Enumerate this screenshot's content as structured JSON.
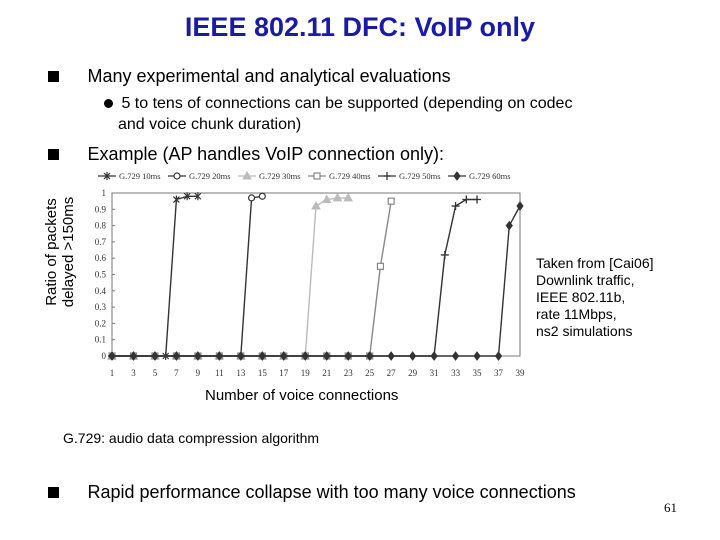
{
  "title": "IEEE 802.11 DFC: VoIP only",
  "bullets": [
    {
      "text": "Many experimental and analytical evaluations"
    },
    {
      "text": "Example (AP handles VoIP connection only):"
    },
    {
      "text": "Rapid performance collapse with too many voice connections"
    }
  ],
  "subbullet": {
    "line1": "5 to tens of connections can be supported (depending on codec",
    "line2": "and voice chunk duration)"
  },
  "note": {
    "lines": [
      "Taken from [Cai06]",
      "Downlink traffic,",
      "IEEE 802.11b,",
      "rate 11Mbps,",
      "ns2 simulations"
    ]
  },
  "caption": "G.729: audio data compression algorithm",
  "page_number": "61",
  "chart_data": {
    "type": "line",
    "title": "",
    "xlabel": "Number of voice connections",
    "ylabel_lines": [
      "Ratio of packets",
      "delayed >150ms"
    ],
    "xlim": [
      1,
      39
    ],
    "ylim": [
      0,
      1
    ],
    "x_ticks": [
      1,
      3,
      5,
      7,
      9,
      11,
      13,
      15,
      17,
      19,
      21,
      23,
      25,
      27,
      29,
      31,
      33,
      35,
      37,
      39
    ],
    "y_ticks": [
      0,
      0.1,
      0.2,
      0.3,
      0.4,
      0.5,
      0.6,
      0.7,
      0.8,
      0.9,
      1
    ],
    "y_tick_labels": [
      "0",
      "0.1",
      "0.2",
      "0.3",
      "0.4",
      "0.5",
      "0.6",
      "0.7",
      "0.8",
      "0.9",
      "1"
    ],
    "legend_position": "top",
    "series": [
      {
        "name": "G.729 10ms",
        "marker": "star",
        "color": "#333333",
        "points": [
          [
            1,
            0
          ],
          [
            3,
            0
          ],
          [
            5,
            0
          ],
          [
            6,
            0
          ],
          [
            7,
            0.96
          ],
          [
            8,
            0.98
          ],
          [
            9,
            0.98
          ]
        ]
      },
      {
        "name": "G.729 20ms",
        "marker": "circle",
        "color": "#333333",
        "points": [
          [
            1,
            0
          ],
          [
            3,
            0
          ],
          [
            5,
            0
          ],
          [
            7,
            0
          ],
          [
            9,
            0
          ],
          [
            11,
            0
          ],
          [
            13,
            0
          ],
          [
            14,
            0.97
          ],
          [
            15,
            0.98
          ]
        ]
      },
      {
        "name": "G.729 30ms",
        "marker": "triangle",
        "color": "#bbbbbb",
        "points": [
          [
            1,
            0
          ],
          [
            3,
            0
          ],
          [
            5,
            0
          ],
          [
            7,
            0
          ],
          [
            9,
            0
          ],
          [
            11,
            0
          ],
          [
            13,
            0
          ],
          [
            15,
            0
          ],
          [
            17,
            0
          ],
          [
            19,
            0
          ],
          [
            20,
            0.92
          ],
          [
            21,
            0.96
          ],
          [
            22,
            0.97
          ],
          [
            23,
            0.97
          ]
        ]
      },
      {
        "name": "G.729 40ms",
        "marker": "square",
        "color": "#888888",
        "points": [
          [
            1,
            0
          ],
          [
            3,
            0
          ],
          [
            5,
            0
          ],
          [
            7,
            0
          ],
          [
            9,
            0
          ],
          [
            11,
            0
          ],
          [
            13,
            0
          ],
          [
            15,
            0
          ],
          [
            17,
            0
          ],
          [
            19,
            0
          ],
          [
            21,
            0
          ],
          [
            23,
            0
          ],
          [
            25,
            0
          ],
          [
            26,
            0.55
          ],
          [
            27,
            0.95
          ]
        ]
      },
      {
        "name": "G.729 50ms",
        "marker": "plus",
        "color": "#333333",
        "points": [
          [
            1,
            0
          ],
          [
            3,
            0
          ],
          [
            5,
            0
          ],
          [
            7,
            0
          ],
          [
            9,
            0
          ],
          [
            11,
            0
          ],
          [
            13,
            0
          ],
          [
            15,
            0
          ],
          [
            17,
            0
          ],
          [
            19,
            0
          ],
          [
            21,
            0
          ],
          [
            23,
            0
          ],
          [
            25,
            0
          ],
          [
            27,
            0
          ],
          [
            29,
            0
          ],
          [
            31,
            0
          ],
          [
            32,
            0.62
          ],
          [
            33,
            0.92
          ],
          [
            34,
            0.96
          ],
          [
            35,
            0.96
          ]
        ]
      },
      {
        "name": "G.729 60ms",
        "marker": "diamond",
        "color": "#333333",
        "points": [
          [
            1,
            0
          ],
          [
            3,
            0
          ],
          [
            5,
            0
          ],
          [
            7,
            0
          ],
          [
            9,
            0
          ],
          [
            11,
            0
          ],
          [
            13,
            0
          ],
          [
            15,
            0
          ],
          [
            17,
            0
          ],
          [
            19,
            0
          ],
          [
            21,
            0
          ],
          [
            23,
            0
          ],
          [
            25,
            0
          ],
          [
            27,
            0
          ],
          [
            29,
            0
          ],
          [
            31,
            0
          ],
          [
            33,
            0
          ],
          [
            35,
            0
          ],
          [
            37,
            0
          ],
          [
            38,
            0.8
          ],
          [
            39,
            0.92
          ]
        ]
      }
    ]
  }
}
